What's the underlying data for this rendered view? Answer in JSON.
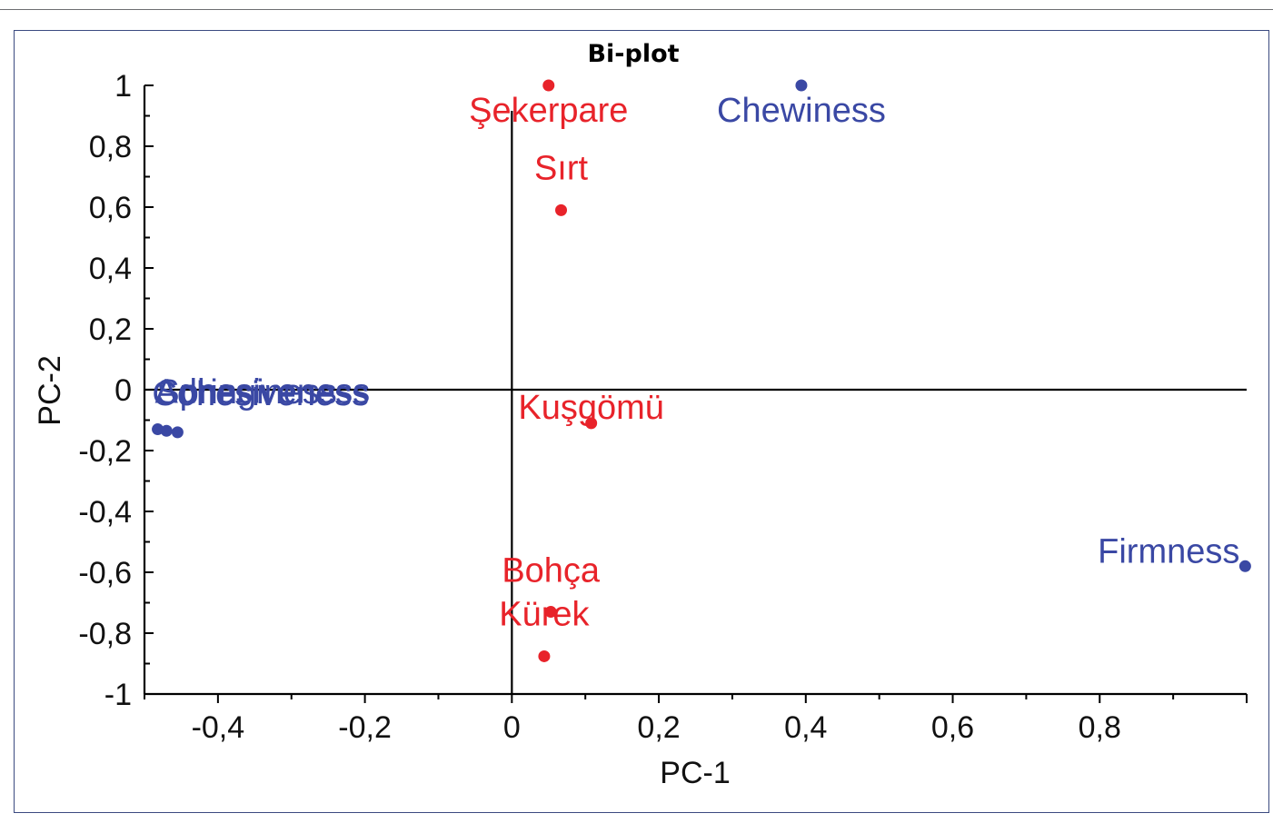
{
  "chart_data": {
    "type": "scatter",
    "title": "Bi-plot",
    "xlabel": "PC-1",
    "ylabel": "PC-2",
    "xlim": [
      -0.5,
      1.0
    ],
    "ylim": [
      -1,
      1
    ],
    "x_ticks": [
      -0.4,
      -0.2,
      0,
      0.2,
      0.4,
      0.6,
      0.8
    ],
    "x_tick_labels": [
      "-0,4",
      "-0,2",
      "0",
      "0,2",
      "0,4",
      "0,6",
      "0,8"
    ],
    "y_ticks": [
      1,
      0.8,
      0.6,
      0.4,
      0.2,
      0,
      -0.2,
      -0.4,
      -0.6,
      -0.8,
      -1
    ],
    "y_tick_labels": [
      "1",
      "0,8",
      "0,6",
      "0,4",
      "0,2",
      "0",
      "-0,2",
      "-0,4",
      "-0,6",
      "-0,8",
      "-1"
    ],
    "grid": false,
    "series": [
      {
        "color": "#e8232a",
        "points": [
          {
            "label": "Şekerpare",
            "x": 0.05,
            "y": 1.0
          },
          {
            "label": "Sırt",
            "x": 0.067,
            "y": 0.59
          },
          {
            "label": "Kuşgömü",
            "x": 0.108,
            "y": -0.11
          },
          {
            "label": "Bohça",
            "x": 0.053,
            "y": -0.73
          },
          {
            "label": "Kürek",
            "x": 0.044,
            "y": -0.876
          }
        ]
      },
      {
        "color": "#3a48a4",
        "points": [
          {
            "label": "Chewiness",
            "x": 0.394,
            "y": 1.0
          },
          {
            "label": "Firmness",
            "x": 0.998,
            "y": -0.58
          },
          {
            "label": "Adhesiveness",
            "x": -0.482,
            "y": -0.13
          },
          {
            "label": "Cohesiveness",
            "x": -0.455,
            "y": -0.14
          },
          {
            "label": "Springiness",
            "x": -0.47,
            "y": -0.135
          }
        ]
      }
    ]
  }
}
